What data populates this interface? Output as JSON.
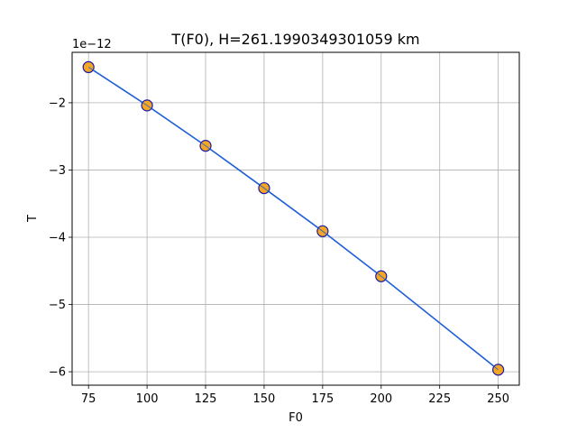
{
  "chart_data": {
    "type": "line",
    "title": "T(F0), H=261.1990349301059 km",
    "xlabel": "F0",
    "ylabel": "T",
    "y_offset_text": "1e−12",
    "xlim": [
      68,
      259
    ],
    "ylim": [
      -6.2,
      -1.25
    ],
    "x_ticks": [
      75,
      100,
      125,
      150,
      175,
      200,
      225,
      250
    ],
    "x_tick_labels": [
      "75",
      "100",
      "125",
      "150",
      "175",
      "200",
      "225",
      "250"
    ],
    "y_ticks": [
      -6,
      -5,
      -4,
      -3,
      -2
    ],
    "y_tick_labels": [
      "−6",
      "−5",
      "−4",
      "−3",
      "−2"
    ],
    "grid": true,
    "series": [
      {
        "x": [
          75,
          100,
          125,
          150,
          175,
          200,
          250
        ],
        "y": [
          -1.47,
          -2.04,
          -2.64,
          -3.27,
          -3.91,
          -4.58,
          -5.97
        ],
        "line_color": "#1f5fd6",
        "marker_face_color": "#f5a623",
        "marker_edge_color": "#1a1aa6"
      }
    ]
  }
}
